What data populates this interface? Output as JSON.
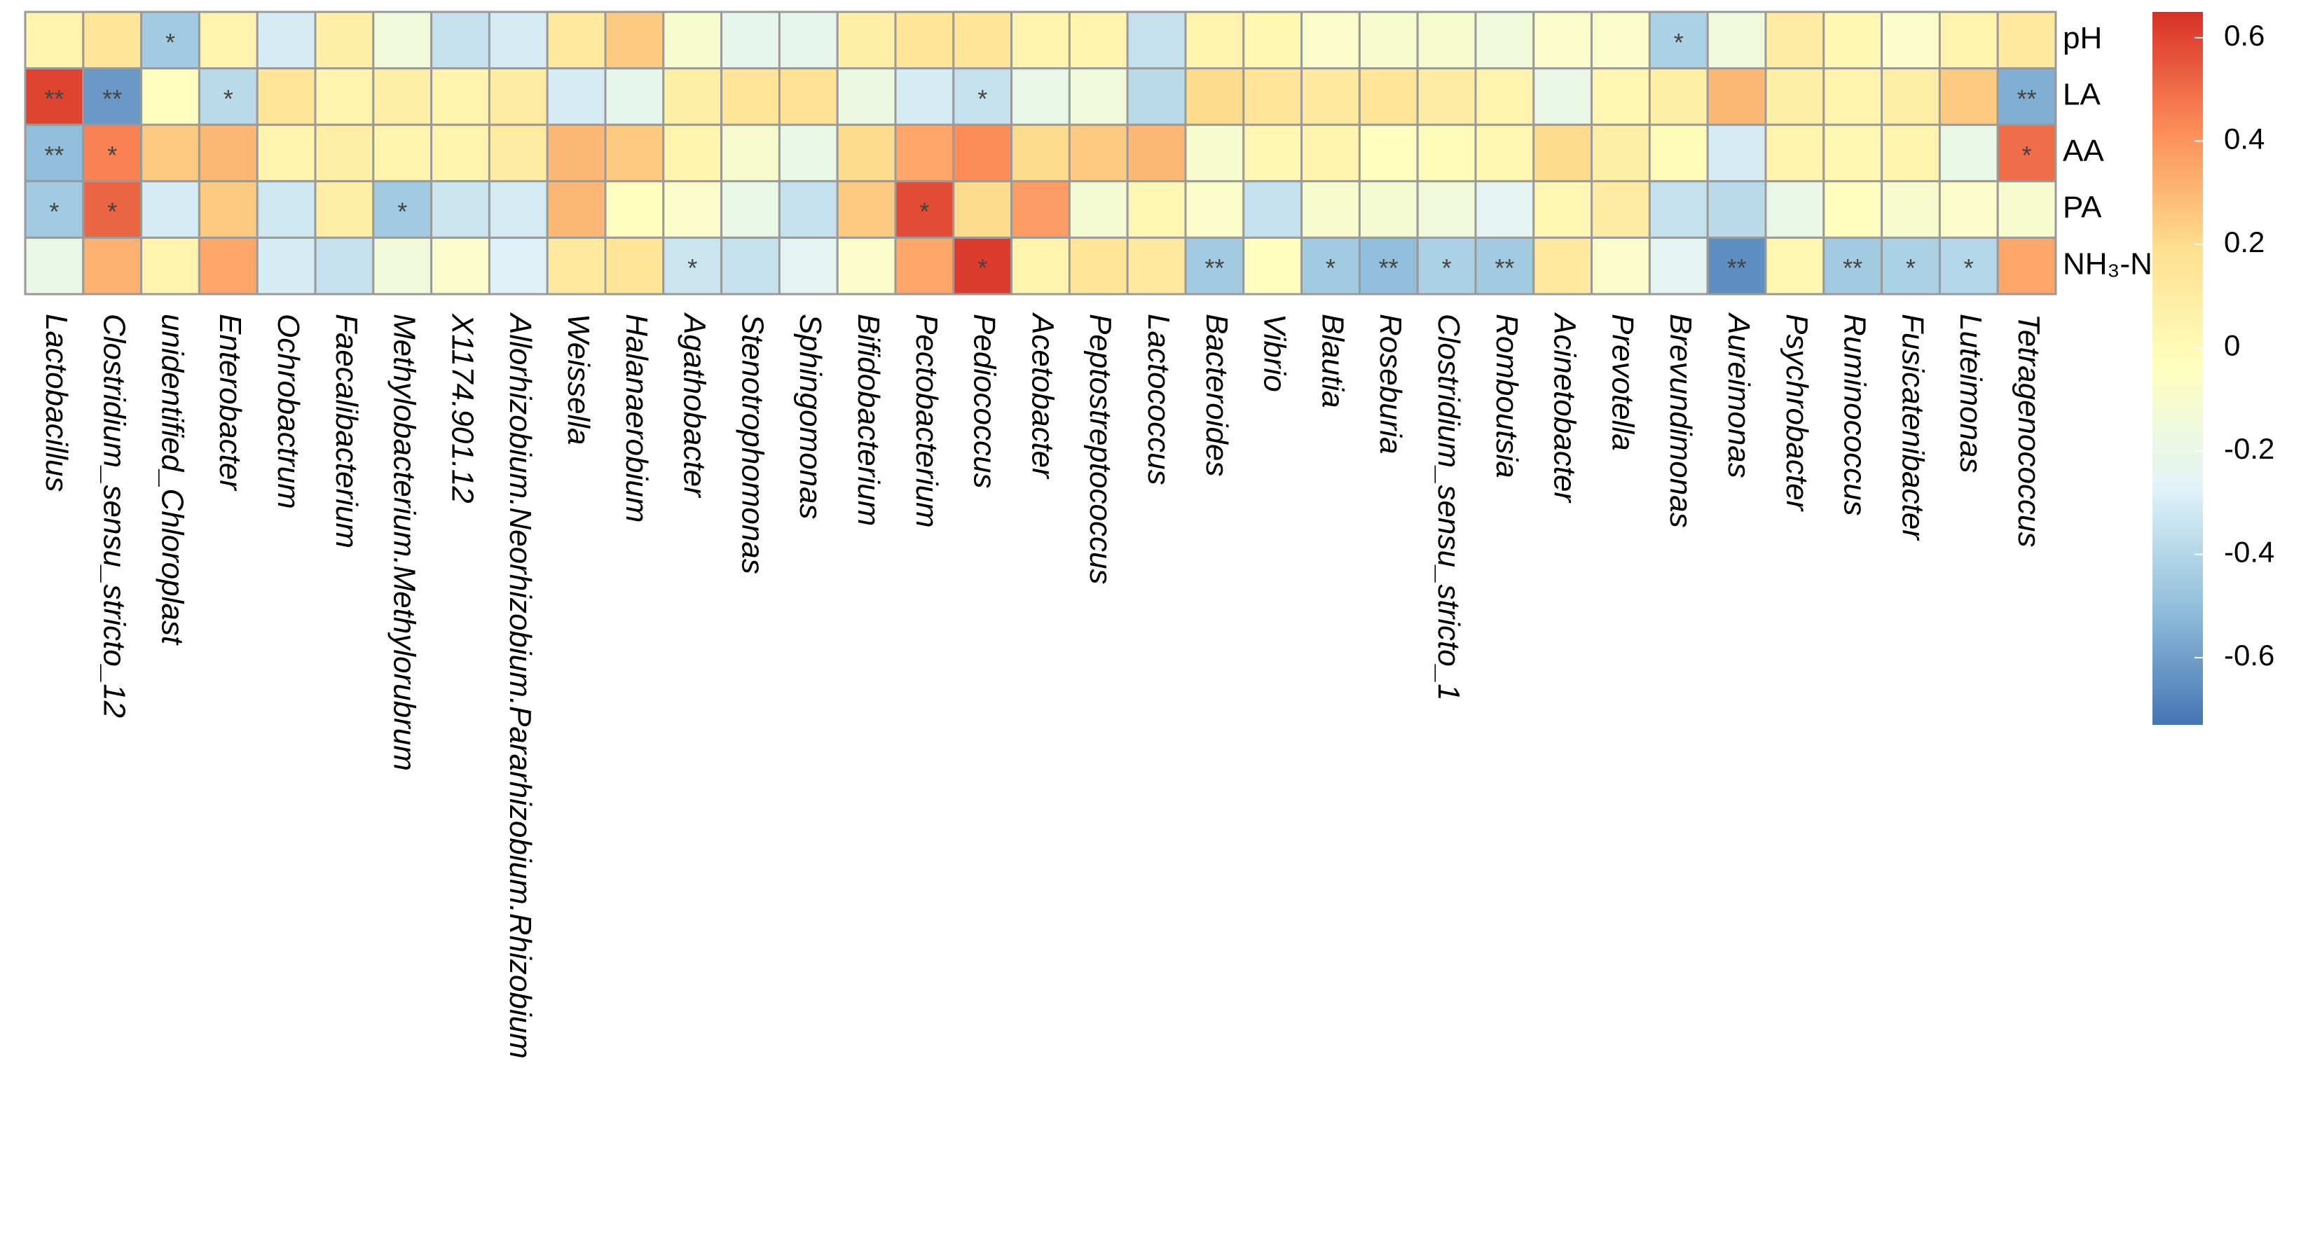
{
  "chart_data": {
    "type": "heatmap",
    "rows": [
      "pH",
      "LA",
      "AA",
      "PA",
      "NH₃-N"
    ],
    "columns": [
      "Lactobacillus",
      "Clostridium_sensu_stricto_12",
      "unidentified_Chloroplast",
      "Enterobacter",
      "Ochrobactrum",
      "Faecalibacterium",
      "Methylobacterium.Methylorubrum",
      "X1174.901.12",
      "Allorhizobium.Neorhizobium.Pararhizobium.Rhizobium",
      "Weissella",
      "Halanaerobium",
      "Agathobacter",
      "Stenotrophomonas",
      "Sphingomonas",
      "Bifidobacterium",
      "Pectobacterium",
      "Pediococcus",
      "Acetobacter",
      "Peptostreptococcus",
      "Lactococcus",
      "Bacteroides",
      "Vibrio",
      "Blautia",
      "Roseburia",
      "Clostridium_sensu_stricto_1",
      "Romboutsia",
      "Acinetobacter",
      "Prevotella",
      "Brevundimonas",
      "Aureimonas",
      "Psychrobacter",
      "Ruminococcus",
      "Fusicatenibacter",
      "Luteimonas",
      "Tetragenococcus"
    ],
    "values": [
      [
        0.05,
        0.15,
        -0.45,
        0.05,
        -0.3,
        0.08,
        -0.15,
        -0.35,
        -0.3,
        0.12,
        0.25,
        -0.1,
        -0.22,
        -0.22,
        0.08,
        0.15,
        0.15,
        0.05,
        0.05,
        -0.35,
        0.05,
        0.03,
        -0.08,
        -0.1,
        -0.1,
        -0.15,
        -0.08,
        -0.08,
        -0.42,
        -0.15,
        0.1,
        0.02,
        -0.08,
        0.05,
        0.12
      ],
      [
        0.6,
        -0.62,
        -0.05,
        -0.38,
        0.15,
        0.05,
        0.08,
        0.05,
        0.1,
        -0.3,
        -0.22,
        0.08,
        0.15,
        0.18,
        -0.18,
        -0.3,
        -0.35,
        -0.2,
        -0.15,
        -0.38,
        0.2,
        0.15,
        0.12,
        0.15,
        0.1,
        0.05,
        -0.2,
        0.03,
        0.08,
        0.3,
        0.08,
        0.05,
        0.08,
        0.25,
        -0.55
      ],
      [
        -0.5,
        0.45,
        0.25,
        0.3,
        0.05,
        0.08,
        0.05,
        0.05,
        0.1,
        0.3,
        0.25,
        0.05,
        -0.1,
        -0.2,
        0.2,
        0.35,
        0.42,
        0.2,
        0.25,
        0.3,
        -0.1,
        0.03,
        0.05,
        -0.05,
        -0.02,
        0.03,
        0.2,
        0.08,
        -0.02,
        -0.3,
        0.05,
        0.02,
        0.05,
        -0.2,
        0.5
      ],
      [
        -0.45,
        0.52,
        -0.3,
        0.25,
        -0.32,
        0.08,
        -0.45,
        -0.33,
        -0.3,
        0.3,
        -0.05,
        -0.08,
        -0.2,
        -0.35,
        0.25,
        0.58,
        0.2,
        0.38,
        -0.12,
        0.02,
        -0.08,
        -0.35,
        -0.1,
        -0.12,
        -0.15,
        -0.25,
        0.02,
        0.1,
        -0.35,
        -0.38,
        -0.2,
        -0.05,
        -0.1,
        -0.08,
        -0.1
      ],
      [
        -0.2,
        0.32,
        0.05,
        0.35,
        -0.3,
        -0.35,
        -0.15,
        -0.08,
        -0.28,
        0.12,
        0.15,
        -0.33,
        -0.35,
        -0.25,
        -0.08,
        0.35,
        0.62,
        0.05,
        0.15,
        0.12,
        -0.45,
        -0.05,
        -0.45,
        -0.5,
        -0.42,
        -0.45,
        0.12,
        -0.08,
        -0.25,
        -0.65,
        0.03,
        -0.45,
        -0.42,
        -0.4,
        0.35
      ]
    ],
    "significance": [
      [
        null,
        null,
        "*",
        null,
        null,
        null,
        null,
        null,
        null,
        null,
        null,
        null,
        null,
        null,
        null,
        null,
        null,
        null,
        null,
        null,
        null,
        null,
        null,
        null,
        null,
        null,
        null,
        null,
        "*",
        null,
        null,
        null,
        null,
        null,
        null
      ],
      [
        "**",
        "**",
        null,
        "*",
        null,
        null,
        null,
        null,
        null,
        null,
        null,
        null,
        null,
        null,
        null,
        null,
        "*",
        null,
        null,
        null,
        null,
        null,
        null,
        null,
        null,
        null,
        null,
        null,
        null,
        null,
        null,
        null,
        null,
        null,
        "**"
      ],
      [
        "**",
        "*",
        null,
        null,
        null,
        null,
        null,
        null,
        null,
        null,
        null,
        null,
        null,
        null,
        null,
        null,
        null,
        null,
        null,
        null,
        null,
        null,
        null,
        null,
        null,
        null,
        null,
        null,
        null,
        null,
        null,
        null,
        null,
        null,
        "*"
      ],
      [
        "*",
        "*",
        null,
        null,
        null,
        null,
        "*",
        null,
        null,
        null,
        null,
        null,
        null,
        null,
        null,
        "*",
        null,
        null,
        null,
        null,
        null,
        null,
        null,
        null,
        null,
        null,
        null,
        null,
        null,
        null,
        null,
        null,
        null,
        null,
        null
      ],
      [
        null,
        null,
        null,
        null,
        null,
        null,
        null,
        null,
        null,
        null,
        null,
        "*",
        null,
        null,
        null,
        null,
        "*",
        null,
        null,
        null,
        "**",
        null,
        "*",
        "**",
        "*",
        "**",
        null,
        null,
        null,
        "**",
        null,
        "**",
        "*",
        "*",
        null
      ]
    ],
    "colors": [
      "#4575B4",
      "#91BFDB",
      "#E0F3F8",
      "#FFFFBF",
      "#FEE090",
      "#FC8D59",
      "#D73027"
    ],
    "colorlim": [
      -0.73,
      0.65
    ],
    "colorbar_ticks": [
      0.6,
      0.4,
      0.2,
      0,
      -0.2,
      -0.4,
      -0.6
    ]
  }
}
